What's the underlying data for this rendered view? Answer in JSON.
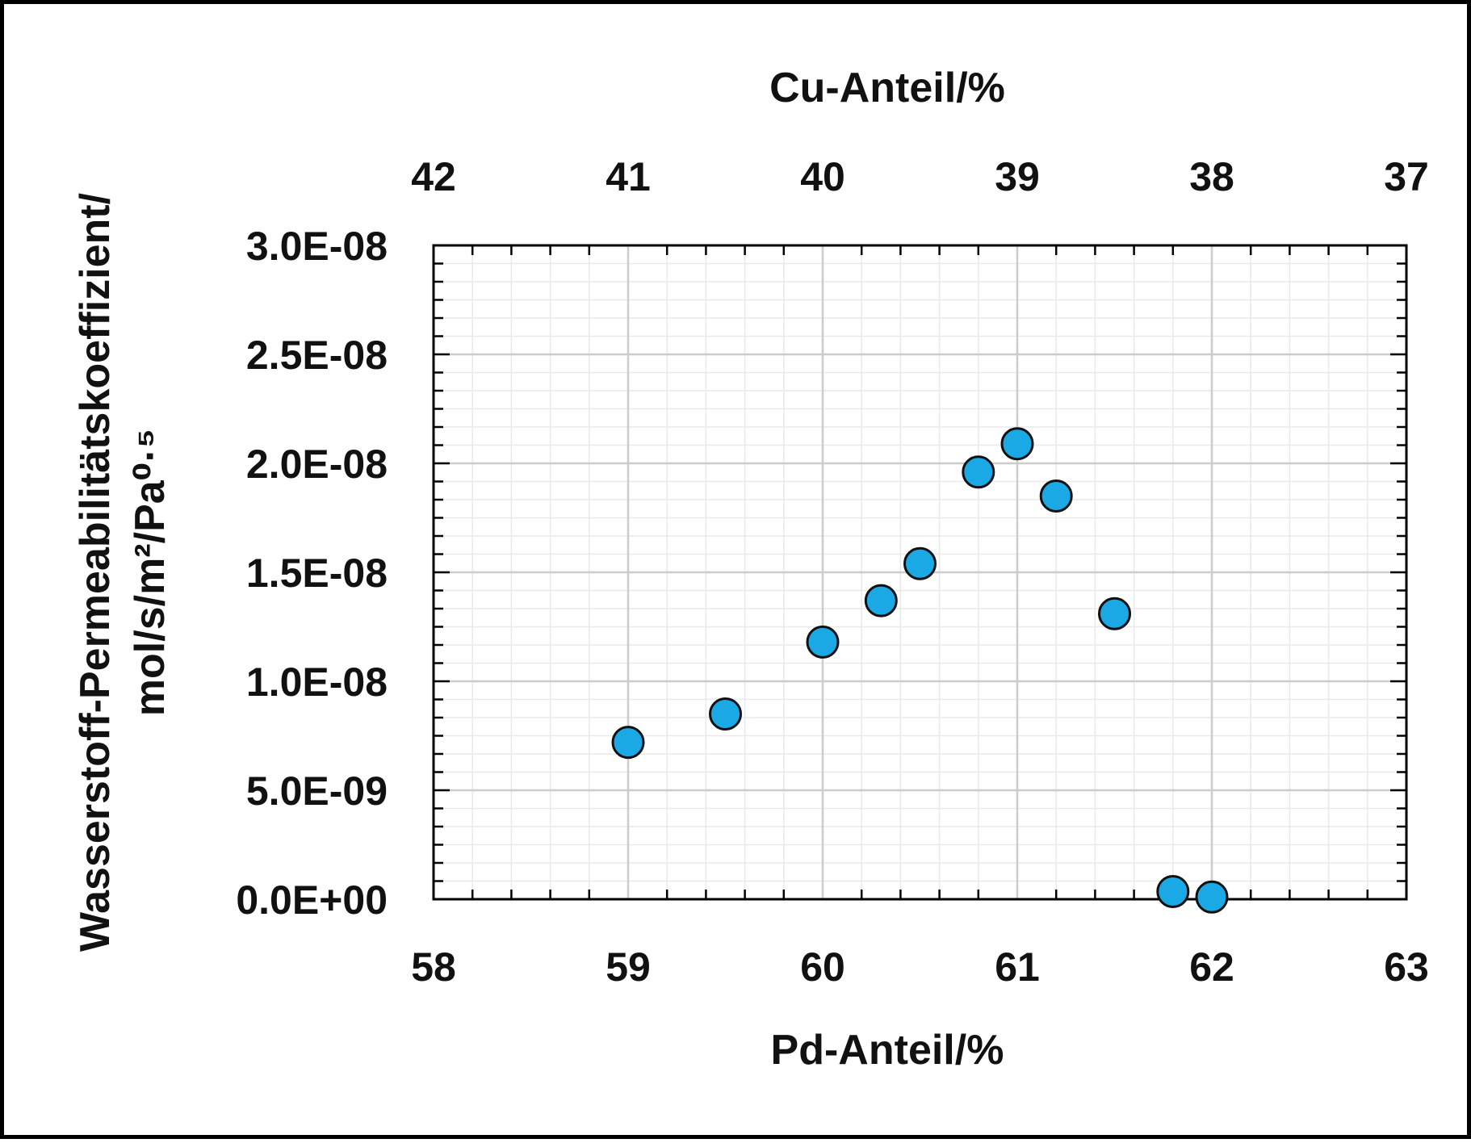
{
  "chart_data": {
    "type": "scatter",
    "title": "",
    "x": [
      59.0,
      59.5,
      60.0,
      60.3,
      60.5,
      60.8,
      61.0,
      61.2,
      61.5,
      61.8,
      62.0
    ],
    "y": [
      7.2e-09,
      8.5e-09,
      1.18e-08,
      1.37e-08,
      1.54e-08,
      1.96e-08,
      2.09e-08,
      1.85e-08,
      1.31e-08,
      3.5e-10,
      1e-10
    ],
    "xlabel": "Pd-Anteil/%",
    "x2label": "Cu-Anteil/%",
    "ylabel_lines": [
      "Wasserstoff-Permeabilitätskoeffizient/",
      "mol/s/m²/Pa⁰·⁵"
    ],
    "xlim": [
      58,
      63
    ],
    "x2lim": [
      42,
      37
    ],
    "ylim": [
      0,
      3e-08
    ],
    "x_ticks": [
      "58",
      "59",
      "60",
      "61",
      "62",
      "63"
    ],
    "x2_ticks": [
      "42",
      "41",
      "40",
      "39",
      "38",
      "37"
    ],
    "y_ticks": [
      "0.0E+00",
      "5.0E-09",
      "1.0E-08",
      "1.5E-08",
      "2.0E-08",
      "2.5E-08",
      "3.0E-08"
    ],
    "grid": true,
    "marker_color": "#1BA9E6"
  }
}
